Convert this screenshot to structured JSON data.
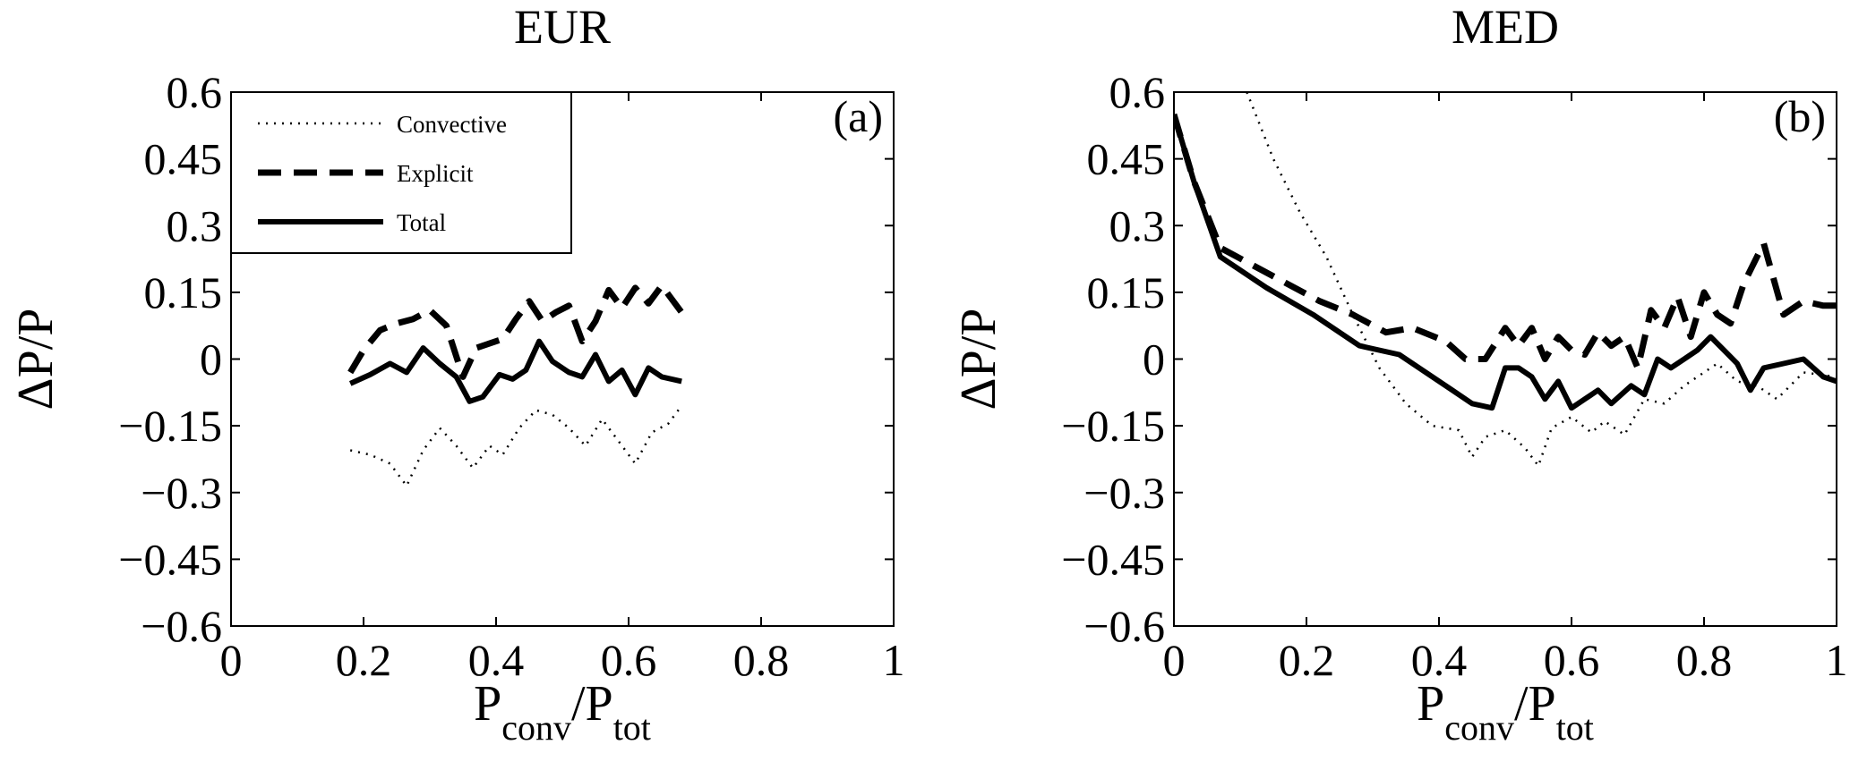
{
  "chart_data": [
    {
      "type": "line",
      "title": "EUR",
      "tag": "(a)",
      "ylabel": "ΔP/P",
      "xlabel": {
        "main": "P",
        "sub1": "conv",
        "slash": "/P",
        "sub2": "tot"
      },
      "xlim": [
        0,
        1
      ],
      "ylim": [
        -0.6,
        0.6
      ],
      "xticks": [
        0,
        0.2,
        0.4,
        0.6,
        0.8,
        1
      ],
      "xtick_labels": [
        "0",
        "0.2",
        "0.4",
        "0.6",
        "0.8",
        "1"
      ],
      "yticks": [
        0.6,
        0.45,
        0.3,
        0.15,
        0,
        -0.15,
        -0.3,
        -0.45,
        -0.6
      ],
      "ytick_labels": [
        "0.6",
        "0.45",
        "0.3",
        "0.15",
        "0",
        "−0.15",
        "−0.3",
        "−0.45",
        "−0.6"
      ],
      "grid": false,
      "legend": {
        "placement": "top-left",
        "entries": [
          "Convective",
          "Explicit",
          "Total"
        ]
      },
      "series": [
        {
          "name": "Convective",
          "style": "dotted",
          "x": [
            0.18,
            0.21,
            0.24,
            0.265,
            0.29,
            0.315,
            0.34,
            0.365,
            0.39,
            0.41,
            0.435,
            0.46,
            0.485,
            0.51,
            0.535,
            0.56,
            0.585,
            0.61,
            0.635,
            0.66,
            0.68
          ],
          "y": [
            -0.205,
            -0.215,
            -0.235,
            -0.285,
            -0.205,
            -0.155,
            -0.195,
            -0.245,
            -0.195,
            -0.215,
            -0.155,
            -0.115,
            -0.125,
            -0.155,
            -0.195,
            -0.135,
            -0.185,
            -0.235,
            -0.165,
            -0.145,
            -0.105
          ]
        },
        {
          "name": "Explicit",
          "style": "dashed",
          "x": [
            0.18,
            0.2,
            0.225,
            0.25,
            0.275,
            0.3,
            0.325,
            0.35,
            0.37,
            0.39,
            0.41,
            0.43,
            0.45,
            0.47,
            0.49,
            0.51,
            0.53,
            0.55,
            0.57,
            0.59,
            0.61,
            0.63,
            0.65,
            0.68
          ],
          "y": [
            -0.03,
            0.02,
            0.065,
            0.08,
            0.09,
            0.11,
            0.075,
            -0.04,
            0.025,
            0.035,
            0.045,
            0.09,
            0.13,
            0.085,
            0.105,
            0.12,
            0.04,
            0.085,
            0.155,
            0.115,
            0.16,
            0.125,
            0.165,
            0.105
          ]
        },
        {
          "name": "Total",
          "style": "solid",
          "x": [
            0.18,
            0.21,
            0.24,
            0.265,
            0.29,
            0.315,
            0.34,
            0.36,
            0.38,
            0.405,
            0.425,
            0.445,
            0.465,
            0.485,
            0.51,
            0.53,
            0.55,
            0.57,
            0.59,
            0.61,
            0.63,
            0.65,
            0.68
          ],
          "y": [
            -0.055,
            -0.035,
            -0.01,
            -0.03,
            0.025,
            -0.01,
            -0.04,
            -0.095,
            -0.085,
            -0.035,
            -0.045,
            -0.025,
            0.04,
            -0.005,
            -0.03,
            -0.04,
            0.01,
            -0.05,
            -0.025,
            -0.08,
            -0.02,
            -0.04,
            -0.05
          ]
        }
      ]
    },
    {
      "type": "line",
      "title": "MED",
      "tag": "(b)",
      "ylabel": "ΔP/P",
      "xlabel": {
        "main": "P",
        "sub1": "conv",
        "slash": "/P",
        "sub2": "tot"
      },
      "xlim": [
        0,
        1
      ],
      "ylim": [
        -0.6,
        0.6
      ],
      "xticks": [
        0,
        0.2,
        0.4,
        0.6,
        0.8,
        1
      ],
      "xtick_labels": [
        "0",
        "0.2",
        "0.4",
        "0.6",
        "0.8",
        "1"
      ],
      "yticks": [
        0.6,
        0.45,
        0.3,
        0.15,
        0,
        -0.15,
        -0.3,
        -0.45,
        -0.6
      ],
      "ytick_labels": [
        "0.6",
        "0.45",
        "0.3",
        "0.15",
        "0",
        "−0.15",
        "−0.3",
        "−0.45",
        "−0.6"
      ],
      "grid": false,
      "series": [
        {
          "name": "Convective",
          "style": "dotted",
          "x": [
            0.11,
            0.15,
            0.19,
            0.23,
            0.27,
            0.31,
            0.35,
            0.39,
            0.43,
            0.45,
            0.47,
            0.5,
            0.53,
            0.55,
            0.57,
            0.6,
            0.63,
            0.65,
            0.68,
            0.71,
            0.74,
            0.77,
            0.8,
            0.82,
            0.85,
            0.88,
            0.91,
            0.95,
            1.0
          ],
          "y": [
            0.6,
            0.45,
            0.33,
            0.23,
            0.1,
            -0.02,
            -0.1,
            -0.15,
            -0.16,
            -0.22,
            -0.175,
            -0.16,
            -0.2,
            -0.24,
            -0.155,
            -0.13,
            -0.165,
            -0.14,
            -0.17,
            -0.09,
            -0.1,
            -0.06,
            -0.03,
            -0.01,
            -0.05,
            -0.06,
            -0.09,
            -0.03,
            -0.04
          ]
        },
        {
          "name": "Explicit",
          "style": "dashed",
          "x": [
            0.0,
            0.03,
            0.07,
            0.12,
            0.17,
            0.22,
            0.27,
            0.32,
            0.36,
            0.41,
            0.44,
            0.47,
            0.5,
            0.52,
            0.54,
            0.56,
            0.58,
            0.6,
            0.62,
            0.64,
            0.66,
            0.68,
            0.7,
            0.72,
            0.74,
            0.76,
            0.78,
            0.8,
            0.82,
            0.84,
            0.86,
            0.89,
            0.92,
            0.95,
            0.98,
            1.0
          ],
          "y": [
            0.55,
            0.4,
            0.25,
            0.21,
            0.17,
            0.13,
            0.1,
            0.06,
            0.07,
            0.04,
            0.0,
            0.0,
            0.07,
            0.03,
            0.07,
            0.0,
            0.05,
            0.02,
            0.01,
            0.06,
            0.03,
            0.05,
            -0.02,
            0.11,
            0.07,
            0.14,
            0.05,
            0.15,
            0.1,
            0.08,
            0.17,
            0.26,
            0.1,
            0.13,
            0.12,
            0.12
          ]
        },
        {
          "name": "Total",
          "style": "solid",
          "x": [
            0.0,
            0.03,
            0.07,
            0.14,
            0.21,
            0.28,
            0.34,
            0.38,
            0.42,
            0.45,
            0.48,
            0.5,
            0.52,
            0.54,
            0.56,
            0.58,
            0.6,
            0.62,
            0.64,
            0.66,
            0.69,
            0.71,
            0.73,
            0.75,
            0.77,
            0.79,
            0.81,
            0.83,
            0.85,
            0.87,
            0.89,
            0.92,
            0.95,
            0.98,
            1.0
          ],
          "y": [
            0.55,
            0.4,
            0.23,
            0.16,
            0.1,
            0.03,
            0.01,
            -0.03,
            -0.07,
            -0.1,
            -0.11,
            -0.02,
            -0.02,
            -0.04,
            -0.09,
            -0.05,
            -0.11,
            -0.09,
            -0.07,
            -0.1,
            -0.06,
            -0.08,
            0.0,
            -0.02,
            0.0,
            0.02,
            0.05,
            0.02,
            -0.01,
            -0.07,
            -0.02,
            -0.01,
            0.0,
            -0.04,
            -0.05
          ]
        }
      ]
    }
  ]
}
